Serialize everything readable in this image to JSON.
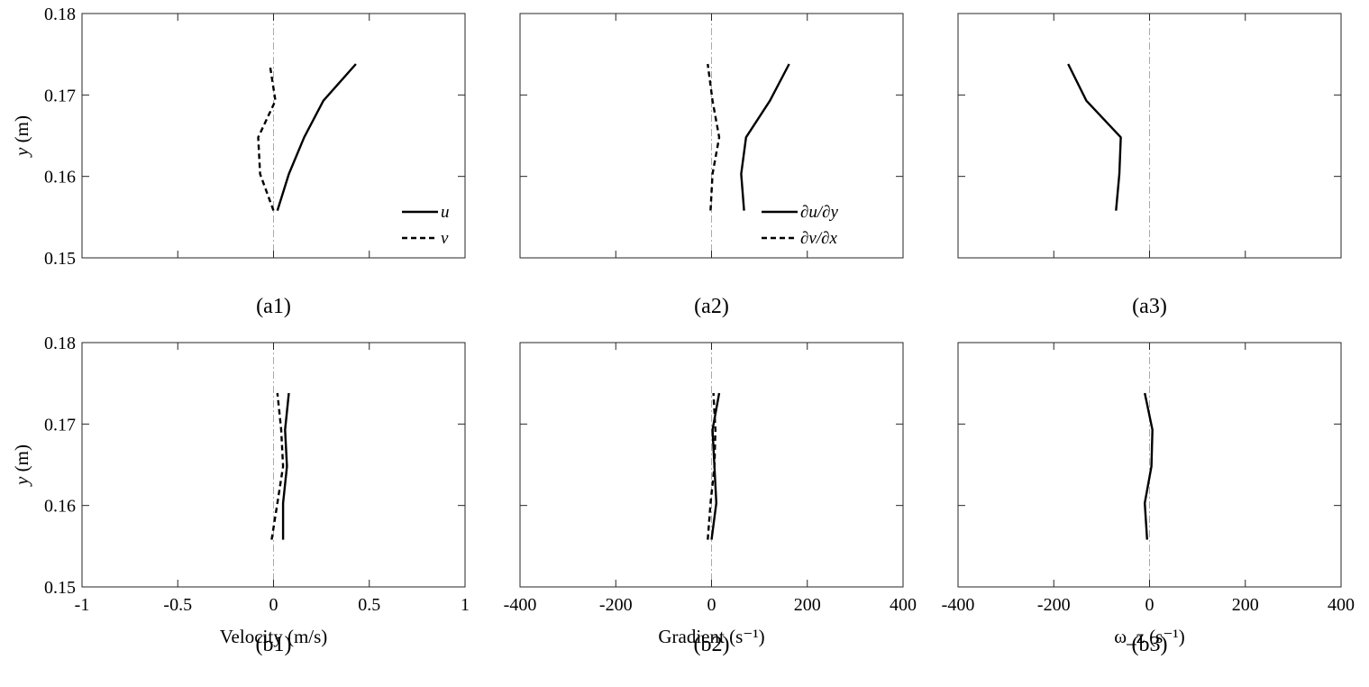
{
  "chart_data": [
    {
      "id": "a1",
      "type": "line",
      "panel_label": "(a1)",
      "xlim": [
        -1,
        1
      ],
      "ylim": [
        0.15,
        0.18
      ],
      "xticks": [
        "-1",
        "-0.5",
        "0",
        "0.5",
        "1"
      ],
      "show_xticks": false,
      "yticks": [
        "0.15",
        "0.16",
        "0.17",
        "0.18"
      ],
      "show_yticks": true,
      "ylabel_var": "y",
      "ylabel_unit": " (m)",
      "xlabel": "",
      "legend": true,
      "legend_position": "bottom-right",
      "grid": false,
      "series": [
        {
          "name": "u",
          "style": "solid",
          "x": [
            0.02,
            0.08,
            0.16,
            0.26,
            0.43
          ],
          "y": [
            0.1558,
            0.1603,
            0.1648,
            0.1693,
            0.1738
          ]
        },
        {
          "name": "v",
          "style": "dashed",
          "x": [
            0.0,
            -0.07,
            -0.08,
            0.01,
            -0.02
          ],
          "y": [
            0.1558,
            0.1603,
            0.1648,
            0.1693,
            0.1738
          ]
        }
      ]
    },
    {
      "id": "a2",
      "type": "line",
      "panel_label": "(a2)",
      "xlim": [
        -400,
        400
      ],
      "ylim": [
        0.15,
        0.18
      ],
      "xticks": [
        "-400",
        "-200",
        "0",
        "200",
        "400"
      ],
      "show_xticks": false,
      "yticks": [
        "0.15",
        "0.16",
        "0.17",
        "0.18"
      ],
      "show_yticks": false,
      "ylabel_var": "",
      "ylabel_unit": "",
      "xlabel": "",
      "legend": true,
      "legend_position": "bottom-right",
      "grid": false,
      "series": [
        {
          "name": "∂u/∂y",
          "style": "solid",
          "x": [
            68,
            62,
            72,
            122,
            162
          ],
          "y": [
            0.1558,
            0.1603,
            0.1648,
            0.1693,
            0.1738
          ]
        },
        {
          "name": "∂v/∂x",
          "style": "dashed",
          "x": [
            -2,
            2,
            16,
            2,
            -8
          ],
          "y": [
            0.1558,
            0.1603,
            0.1648,
            0.1693,
            0.1738
          ]
        }
      ]
    },
    {
      "id": "a3",
      "type": "line",
      "panel_label": "(a3)",
      "xlim": [
        -400,
        400
      ],
      "ylim": [
        0.15,
        0.18
      ],
      "xticks": [
        "-400",
        "-200",
        "0",
        "200",
        "400"
      ],
      "show_xticks": false,
      "yticks": [
        "0.15",
        "0.16",
        "0.17",
        "0.18"
      ],
      "show_yticks": false,
      "ylabel_var": "",
      "ylabel_unit": "",
      "xlabel": "",
      "legend": false,
      "grid": false,
      "series": [
        {
          "name": "",
          "style": "solid",
          "x": [
            -70,
            -63,
            -60,
            -132,
            -170
          ],
          "y": [
            0.1558,
            0.1603,
            0.1648,
            0.1693,
            0.1738
          ]
        }
      ]
    },
    {
      "id": "b1",
      "type": "line",
      "panel_label": "(b1)",
      "xlim": [
        -1,
        1
      ],
      "ylim": [
        0.15,
        0.18
      ],
      "xticks": [
        "-1",
        "-0.5",
        "0",
        "0.5",
        "1"
      ],
      "show_xticks": true,
      "yticks": [
        "0.15",
        "0.16",
        "0.17",
        "0.18"
      ],
      "show_yticks": true,
      "ylabel_var": "y",
      "ylabel_unit": " (m)",
      "xlabel": "Velocity (m/s)",
      "legend": false,
      "grid": false,
      "series": [
        {
          "name": "u",
          "style": "solid",
          "x": [
            0.05,
            0.05,
            0.07,
            0.06,
            0.08
          ],
          "y": [
            0.1558,
            0.1603,
            0.1648,
            0.1693,
            0.1738
          ]
        },
        {
          "name": "v",
          "style": "dashed",
          "x": [
            -0.01,
            0.02,
            0.05,
            0.04,
            0.02
          ],
          "y": [
            0.1558,
            0.1603,
            0.1648,
            0.1693,
            0.1738
          ]
        }
      ]
    },
    {
      "id": "b2",
      "type": "line",
      "panel_label": "(b2)",
      "xlim": [
        -400,
        400
      ],
      "ylim": [
        0.15,
        0.18
      ],
      "xticks": [
        "-400",
        "-200",
        "0",
        "200",
        "400"
      ],
      "show_xticks": true,
      "yticks": [
        "0.15",
        "0.16",
        "0.17",
        "0.18"
      ],
      "show_yticks": false,
      "ylabel_var": "",
      "ylabel_unit": "",
      "xlabel": "Gradient (s⁻¹)",
      "legend": false,
      "grid": false,
      "series": [
        {
          "name": "∂u/∂y",
          "style": "solid",
          "x": [
            0,
            10,
            6,
            2,
            16
          ],
          "y": [
            0.1558,
            0.1603,
            0.1648,
            0.1693,
            0.1738
          ]
        },
        {
          "name": "∂v/∂x",
          "style": "dashed",
          "x": [
            -8,
            -2,
            6,
            8,
            4
          ],
          "y": [
            0.1558,
            0.1603,
            0.1648,
            0.1693,
            0.1738
          ]
        }
      ]
    },
    {
      "id": "b3",
      "type": "line",
      "panel_label": "(b3)",
      "xlim": [
        -400,
        400
      ],
      "ylim": [
        0.15,
        0.18
      ],
      "xticks": [
        "-400",
        "-200",
        "0",
        "200",
        "400"
      ],
      "show_xticks": true,
      "yticks": [
        "0.15",
        "0.16",
        "0.17",
        "0.18"
      ],
      "show_yticks": false,
      "ylabel_var": "",
      "ylabel_unit": "",
      "xlabel": "ω_z (s⁻¹)",
      "legend": false,
      "grid": false,
      "series": [
        {
          "name": "",
          "style": "solid",
          "x": [
            -5,
            -10,
            4,
            6,
            -10
          ],
          "y": [
            0.1558,
            0.1603,
            0.1648,
            0.1693,
            0.1738
          ]
        }
      ]
    }
  ]
}
